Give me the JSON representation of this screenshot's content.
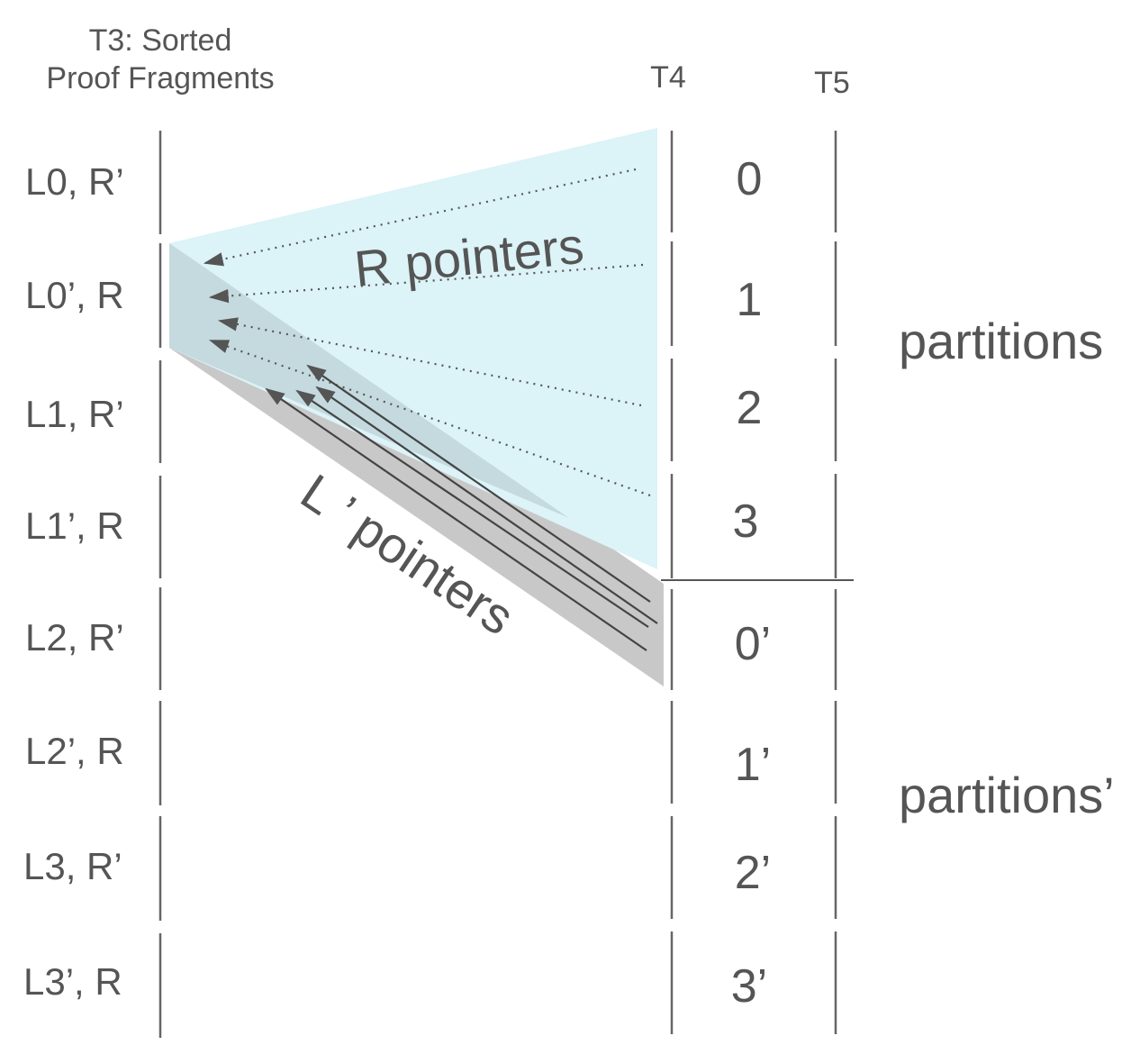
{
  "headers": {
    "t3_line1": "T3: Sorted",
    "t3_line2": "Proof Fragments",
    "t4": "T4",
    "t5": "T5"
  },
  "rows": [
    "L0, R’",
    "L0’, R",
    "L1, R’",
    "L1’, R",
    "L2, R’",
    "L2’, R",
    "L3, R’",
    "L3’, R"
  ],
  "partition_ids": [
    "0",
    "1",
    "2",
    "3",
    "0’",
    "1’",
    "2’",
    "3’"
  ],
  "labels": {
    "r_pointers": "R pointers",
    "l_pointers": "L ’ pointers",
    "partitions": "partitions",
    "partitions_prime": "partitions’"
  },
  "colors": {
    "r_region": "#dcf3f7",
    "l_region": "#c8c8c8",
    "overlap": "#c4dadf",
    "text": "#555555"
  }
}
